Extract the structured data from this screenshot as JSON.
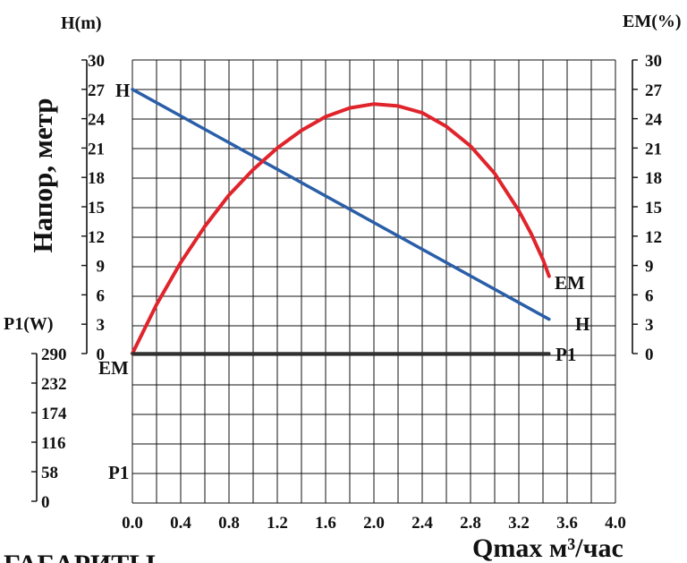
{
  "chart_data": {
    "type": "line",
    "xlabel": "Qmax м³/час",
    "x_ticks": [
      "0.0",
      "0.4",
      "0.8",
      "1.2",
      "1.6",
      "2.0",
      "2.4",
      "2.8",
      "3.2",
      "3.6",
      "4.0"
    ],
    "xlim": [
      0,
      4.0
    ],
    "left_axis": {
      "unit": "H(m)",
      "label": "Напор, метр",
      "ticks": [
        "30",
        "27",
        "24",
        "21",
        "18",
        "15",
        "12",
        "9",
        "6",
        "3",
        "0"
      ],
      "ylim": [
        0,
        30
      ]
    },
    "right_axis": {
      "unit": "EM(%)",
      "ticks": [
        "30",
        "27",
        "24",
        "21",
        "18",
        "15",
        "12",
        "9",
        "6",
        "3",
        "0"
      ],
      "ylim": [
        0,
        30
      ]
    },
    "power_axis": {
      "unit": "P1(W)",
      "ticks": [
        "290",
        "232",
        "174",
        "116",
        "58",
        "0"
      ],
      "ylim": [
        0,
        290
      ]
    },
    "grid": true,
    "series": [
      {
        "name": "H",
        "axis": "left",
        "color": "#2a5ea8",
        "x": [
          0.0,
          3.45
        ],
        "y": [
          27.0,
          3.5
        ]
      },
      {
        "name": "EM",
        "axis": "right",
        "color": "#e0242c",
        "x": [
          0.0,
          0.2,
          0.4,
          0.6,
          0.8,
          1.0,
          1.2,
          1.4,
          1.6,
          1.8,
          2.0,
          2.2,
          2.4,
          2.6,
          2.8,
          3.0,
          3.2,
          3.3,
          3.4,
          3.45
        ],
        "y": [
          0.0,
          5.0,
          9.3,
          13.0,
          16.2,
          18.8,
          21.0,
          22.8,
          24.2,
          25.1,
          25.5,
          25.3,
          24.6,
          23.2,
          21.2,
          18.4,
          14.6,
          12.3,
          9.6,
          7.9
        ]
      },
      {
        "name": "P1",
        "axis": "power",
        "color": "#333333",
        "x": [
          0.0,
          3.45
        ],
        "y": [
          290,
          290
        ]
      }
    ],
    "curve_labels": {
      "H_left": "H",
      "H_right": "H",
      "EM_left": "EM",
      "EM_right": "EM",
      "P1_left": "P1",
      "P1_right": "P1"
    },
    "caption": "ГАБАРИТЫ"
  }
}
